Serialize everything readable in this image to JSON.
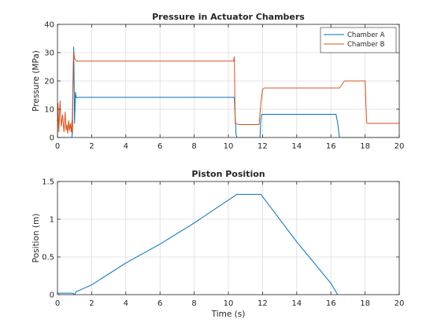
{
  "chart_data": [
    {
      "type": "line",
      "title": "Pressure in Actuator Chambers",
      "xlabel": "",
      "ylabel": "Pressure (MPa)",
      "xlim": [
        0,
        20
      ],
      "ylim": [
        0,
        40
      ],
      "xticks": [
        0,
        2,
        4,
        6,
        8,
        10,
        12,
        14,
        16,
        18,
        20
      ],
      "xtick_labels": [
        "0",
        "2",
        "4",
        "6",
        "8",
        "10",
        "12",
        "14",
        "16",
        "18",
        "20"
      ],
      "yticks": [
        0,
        10,
        20,
        30,
        40
      ],
      "ytick_labels": [
        "0",
        "10",
        "20",
        "30",
        "40"
      ],
      "grid": true,
      "legend": "top-right",
      "series": [
        {
          "name": "Chamber A",
          "color": "#0072BD",
          "points": [
            [
              0,
              0
            ],
            [
              0.85,
              0
            ],
            [
              0.9,
              16
            ],
            [
              0.95,
              32
            ],
            [
              1.0,
              5
            ],
            [
              1.05,
              16
            ],
            [
              1.1,
              14
            ],
            [
              1.2,
              14.2
            ],
            [
              10.35,
              14.2
            ],
            [
              10.4,
              7
            ],
            [
              10.45,
              1
            ],
            [
              10.5,
              0
            ],
            [
              11.85,
              0
            ],
            [
              11.9,
              6
            ],
            [
              11.95,
              8.2
            ],
            [
              12.1,
              8.2
            ],
            [
              16.3,
              8.2
            ],
            [
              16.4,
              5
            ],
            [
              16.5,
              0
            ],
            [
              20,
              0
            ]
          ]
        },
        {
          "name": "Chamber B",
          "color": "#D95319",
          "points": [
            [
              0,
              0
            ],
            [
              0.03,
              12
            ],
            [
              0.08,
              2
            ],
            [
              0.15,
              13
            ],
            [
              0.22,
              4
            ],
            [
              0.3,
              8
            ],
            [
              0.38,
              2
            ],
            [
              0.45,
              9
            ],
            [
              0.5,
              2.5
            ],
            [
              0.55,
              4.5
            ],
            [
              0.6,
              1.5
            ],
            [
              0.65,
              6
            ],
            [
              0.7,
              2.5
            ],
            [
              0.75,
              5
            ],
            [
              0.8,
              2
            ],
            [
              0.85,
              6
            ],
            [
              0.88,
              1.5
            ],
            [
              0.92,
              25
            ],
            [
              0.96,
              30
            ],
            [
              1.0,
              28
            ],
            [
              1.1,
              27
            ],
            [
              10.3,
              27
            ],
            [
              10.35,
              28.5
            ],
            [
              10.4,
              5
            ],
            [
              10.6,
              4.6
            ],
            [
              11.5,
              4.6
            ],
            [
              11.8,
              4.6
            ],
            [
              11.9,
              12
            ],
            [
              12.0,
              17
            ],
            [
              12.1,
              17.5
            ],
            [
              16.5,
              17.5
            ],
            [
              16.8,
              20
            ],
            [
              18.0,
              20
            ],
            [
              18.05,
              12
            ],
            [
              18.1,
              5
            ],
            [
              20,
              5
            ]
          ]
        }
      ]
    },
    {
      "type": "line",
      "title": "Piston Position",
      "xlabel": "Time (s)",
      "ylabel": "Position (m)",
      "xlim": [
        0,
        20
      ],
      "ylim": [
        0,
        1.5
      ],
      "xticks": [
        0,
        2,
        4,
        6,
        8,
        10,
        12,
        14,
        16,
        18,
        20
      ],
      "xtick_labels": [
        "0",
        "2",
        "4",
        "6",
        "8",
        "10",
        "12",
        "14",
        "16",
        "18",
        "20"
      ],
      "yticks": [
        0,
        0.5,
        1,
        1.5
      ],
      "ytick_labels": [
        "0",
        "0.5",
        "1",
        "1.5"
      ],
      "grid": true,
      "series": [
        {
          "color": "#0072BD",
          "points": [
            [
              0,
              0.02
            ],
            [
              0.1,
              0.02
            ],
            [
              0.9,
              0.02
            ],
            [
              1.0,
              0
            ],
            [
              1.1,
              0.04
            ],
            [
              2,
              0.13
            ],
            [
              4,
              0.42
            ],
            [
              6,
              0.67
            ],
            [
              8,
              0.95
            ],
            [
              10.5,
              1.33
            ],
            [
              11.9,
              1.33
            ],
            [
              14,
              0.7
            ],
            [
              16,
              0.15
            ],
            [
              16.5,
              -0.04
            ],
            [
              17.9,
              -0.04
            ],
            [
              18.0,
              0
            ],
            [
              18.05,
              -0.05
            ],
            [
              18.1,
              -0.01
            ],
            [
              20,
              -0.01
            ]
          ]
        }
      ]
    }
  ]
}
